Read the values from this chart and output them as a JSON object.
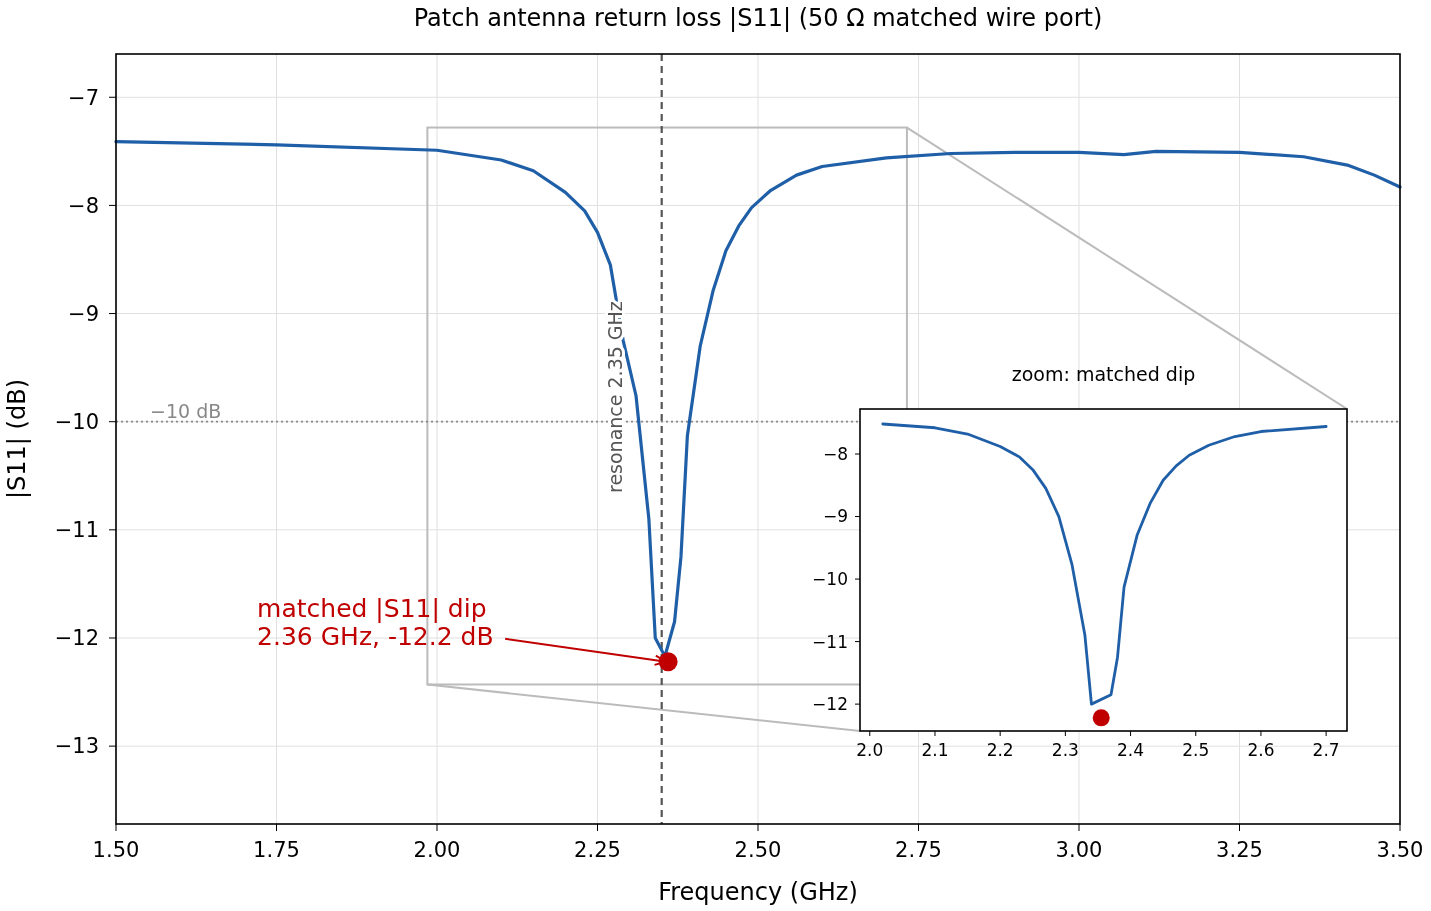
{
  "chart_data": [
    {
      "type": "line",
      "title": "Patch antenna return loss |S11| (50 Ω matched wire port)",
      "xlabel": "Frequency  (GHz)",
      "ylabel": "|S11|  (dB)",
      "xlim": [
        1.5,
        3.5
      ],
      "ylim": [
        -13.72,
        -6.6
      ],
      "xticks": [
        {
          "value": 1.5,
          "label": "1.50"
        },
        {
          "value": 1.75,
          "label": "1.75"
        },
        {
          "value": 2,
          "label": "2.00"
        },
        {
          "value": 2.25,
          "label": "2.25"
        },
        {
          "value": 2.5,
          "label": "2.50"
        },
        {
          "value": 2.75,
          "label": "2.75"
        },
        {
          "value": 3,
          "label": "3.00"
        },
        {
          "value": 3.25,
          "label": "3.25"
        },
        {
          "value": 3.5,
          "label": "3.50"
        }
      ],
      "yticks": [
        {
          "value": -13,
          "label": "−13"
        },
        {
          "value": -12,
          "label": "−12"
        },
        {
          "value": -11,
          "label": "−11"
        },
        {
          "value": -10,
          "label": "−10"
        },
        {
          "value": -9,
          "label": "−9"
        },
        {
          "value": -8,
          "label": "−8"
        },
        {
          "value": -7,
          "label": "−7"
        }
      ],
      "grid": true,
      "series": [
        {
          "type": "line",
          "color": "#1f5fa8",
          "x": [
            1.5,
            1.75,
            2.0,
            2.1,
            2.15,
            2.2,
            2.23,
            2.25,
            2.27,
            2.29,
            2.31,
            2.33,
            2.34,
            2.355,
            2.37,
            2.38,
            2.39,
            2.41,
            2.43,
            2.45,
            2.47,
            2.49,
            2.52,
            2.56,
            2.6,
            2.7,
            2.8,
            2.9,
            3.0,
            3.07,
            3.12,
            3.25,
            3.35,
            3.42,
            3.46,
            3.5
          ],
          "values": [
            -7.41,
            -7.44,
            -7.49,
            -7.58,
            -7.68,
            -7.88,
            -8.05,
            -8.25,
            -8.55,
            -9.25,
            -9.76,
            -10.9,
            -12.0,
            -12.17,
            -11.85,
            -11.25,
            -10.13,
            -9.3,
            -8.79,
            -8.42,
            -8.19,
            -8.02,
            -7.86,
            -7.72,
            -7.64,
            -7.56,
            -7.52,
            -7.51,
            -7.51,
            -7.53,
            -7.5,
            -7.51,
            -7.55,
            -7.63,
            -7.72,
            -7.83
          ]
        },
        {
          "type": "scatter",
          "color": "#c00000",
          "x": [
            2.36
          ],
          "values": [
            -12.22
          ]
        }
      ],
      "ref_lines": [
        {
          "axis": "x",
          "value": 2.35,
          "label": "resonance 2.35 GHz",
          "color": "#555555",
          "line_style": "dashed"
        },
        {
          "axis": "y",
          "value": -10,
          "label": "−10 dB",
          "color": "#888888",
          "line_style": "dotted"
        }
      ],
      "annotations": [
        {
          "text": "matched |S11| dip\n2.36 GHz, -12.2 dB",
          "x": 2.36,
          "y": -12.22
        }
      ]
    },
    {
      "type": "line",
      "title": "zoom: matched dip",
      "xlim": [
        1.985,
        2.732
      ],
      "ylim": [
        -12.43,
        -7.28
      ],
      "xticks": [
        {
          "value": 2,
          "label": "2.0"
        },
        2.1,
        2.2,
        2.3,
        2.4,
        2.5,
        2.6,
        2.7
      ],
      "yticks": [
        {
          "value": -12,
          "label": "−12"
        },
        {
          "value": -11,
          "label": "−11"
        },
        {
          "value": -10,
          "label": "−10"
        },
        {
          "value": -9,
          "label": "−9"
        },
        {
          "value": -8,
          "label": "−8"
        }
      ],
      "series": [
        {
          "type": "line",
          "color": "#1f5fa8",
          "x": [
            2.02,
            2.1,
            2.15,
            2.2,
            2.23,
            2.25,
            2.27,
            2.29,
            2.31,
            2.33,
            2.34,
            2.37,
            2.38,
            2.39,
            2.41,
            2.43,
            2.45,
            2.47,
            2.49,
            2.52,
            2.56,
            2.6,
            2.7
          ],
          "values": [
            -7.52,
            -7.58,
            -7.68,
            -7.88,
            -8.05,
            -8.25,
            -8.55,
            -9.0,
            -9.76,
            -10.9,
            -12.0,
            -11.85,
            -11.25,
            -10.13,
            -9.3,
            -8.79,
            -8.42,
            -8.19,
            -8.02,
            -7.86,
            -7.72,
            -7.64,
            -7.56
          ]
        },
        {
          "type": "scatter",
          "color": "#c00000",
          "x": [
            2.355
          ],
          "values": [
            -12.22
          ]
        }
      ]
    }
  ]
}
